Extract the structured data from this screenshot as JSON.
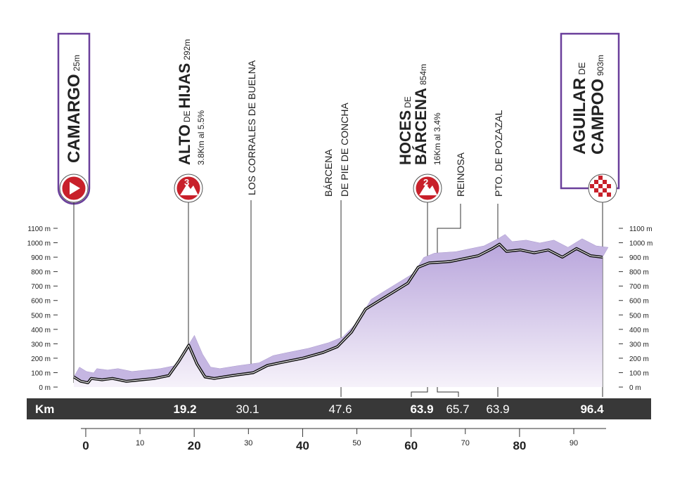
{
  "chart_data": {
    "type": "area",
    "x": [
      -2.2,
      -0.9,
      0.4,
      1.0,
      3.0,
      4.9,
      7.5,
      10.1,
      12.7,
      15.3,
      17.2,
      19.0,
      20.5,
      22.0,
      23.7,
      27.0,
      30.9,
      33.5,
      36.0,
      40.0,
      43.8,
      46.4,
      49.0,
      51.6,
      54.2,
      56.8,
      59.4,
      61.3,
      63.3,
      67.2,
      72.4,
      75.0,
      76.3,
      77.6,
      80.2,
      82.7,
      85.3,
      87.9,
      90.5,
      93.1,
      95.3
    ],
    "values": [
      70,
      40,
      30,
      60,
      50,
      60,
      40,
      50,
      60,
      80,
      180,
      290,
      160,
      70,
      60,
      80,
      100,
      150,
      170,
      200,
      240,
      280,
      380,
      540,
      600,
      660,
      720,
      830,
      860,
      870,
      910,
      960,
      990,
      940,
      950,
      930,
      950,
      900,
      960,
      910,
      900
    ],
    "xlim": [
      -2.2,
      97
    ],
    "xticks": [
      0,
      10,
      20,
      30,
      40,
      50,
      60,
      70,
      80,
      90
    ],
    "ylim": [
      0,
      1100
    ],
    "yticks": [
      {
        "value": 0,
        "label": "0 m"
      },
      {
        "value": 100,
        "label": "100 m"
      },
      {
        "value": 200,
        "label": "200 m"
      },
      {
        "value": 300,
        "label": "300 m"
      },
      {
        "value": 400,
        "label": "400 m"
      },
      {
        "value": 500,
        "label": "500 m"
      },
      {
        "value": 600,
        "label": "600 m"
      },
      {
        "value": 700,
        "label": "700 m"
      },
      {
        "value": 800,
        "label": "800 m"
      },
      {
        "value": 900,
        "label": "900 m"
      },
      {
        "value": 1000,
        "label": "1000 m"
      },
      {
        "value": 1100,
        "label": "1100 m"
      }
    ],
    "color": "#7b5cb3",
    "km_title": "Km",
    "km_labels": [
      19.2,
      30.1,
      47.6,
      63.9,
      65.7,
      63.9,
      96.4
    ],
    "waypoints": [
      {
        "name": "CAMARGO",
        "altitude": "25m"
      },
      {
        "name": [
          "ALTO",
          "DE",
          "HIJAS"
        ],
        "altitude": "292m",
        "climb": "3.8Km al 5.5%",
        "category": "3"
      },
      {
        "name": "LOS CORRALES DE BUELNA"
      },
      {
        "name": [
          "BÁRCENA",
          "DE PIE DE CONCHA"
        ]
      },
      {
        "name": [
          "HOCES",
          "DE",
          "BÁRCENA"
        ],
        "altitude": "854m",
        "climb": "16Km al 3.4%",
        "category": "2"
      },
      {
        "name": "REINOSA"
      },
      {
        "name": "PTO. DE POZAZAL"
      },
      {
        "name": [
          "AGUILAR",
          "DE",
          "CAMPOO"
        ],
        "altitude": "903m"
      }
    ]
  }
}
